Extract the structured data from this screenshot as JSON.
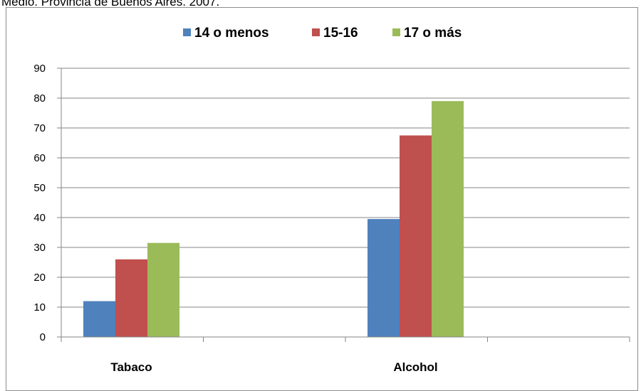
{
  "caption": "Medio. Provincia de Buenos Aires. 2007.",
  "chart_data": {
    "type": "bar",
    "categories": [
      "Tabaco",
      "Alcohol"
    ],
    "series": [
      {
        "name": "14 o menos",
        "values": [
          12,
          39.5
        ],
        "color": "#4f81bd"
      },
      {
        "name": "15-16",
        "values": [
          26,
          67.5
        ],
        "color": "#c0504d"
      },
      {
        "name": "17 o más",
        "values": [
          31.5,
          79
        ],
        "color": "#9bbb59"
      }
    ],
    "yticks": [
      "0",
      "10",
      "20",
      "30",
      "40",
      "50",
      "60",
      "70",
      "80",
      "90"
    ],
    "ylim": [
      0,
      90
    ],
    "legend_position": "top",
    "grid": true
  }
}
